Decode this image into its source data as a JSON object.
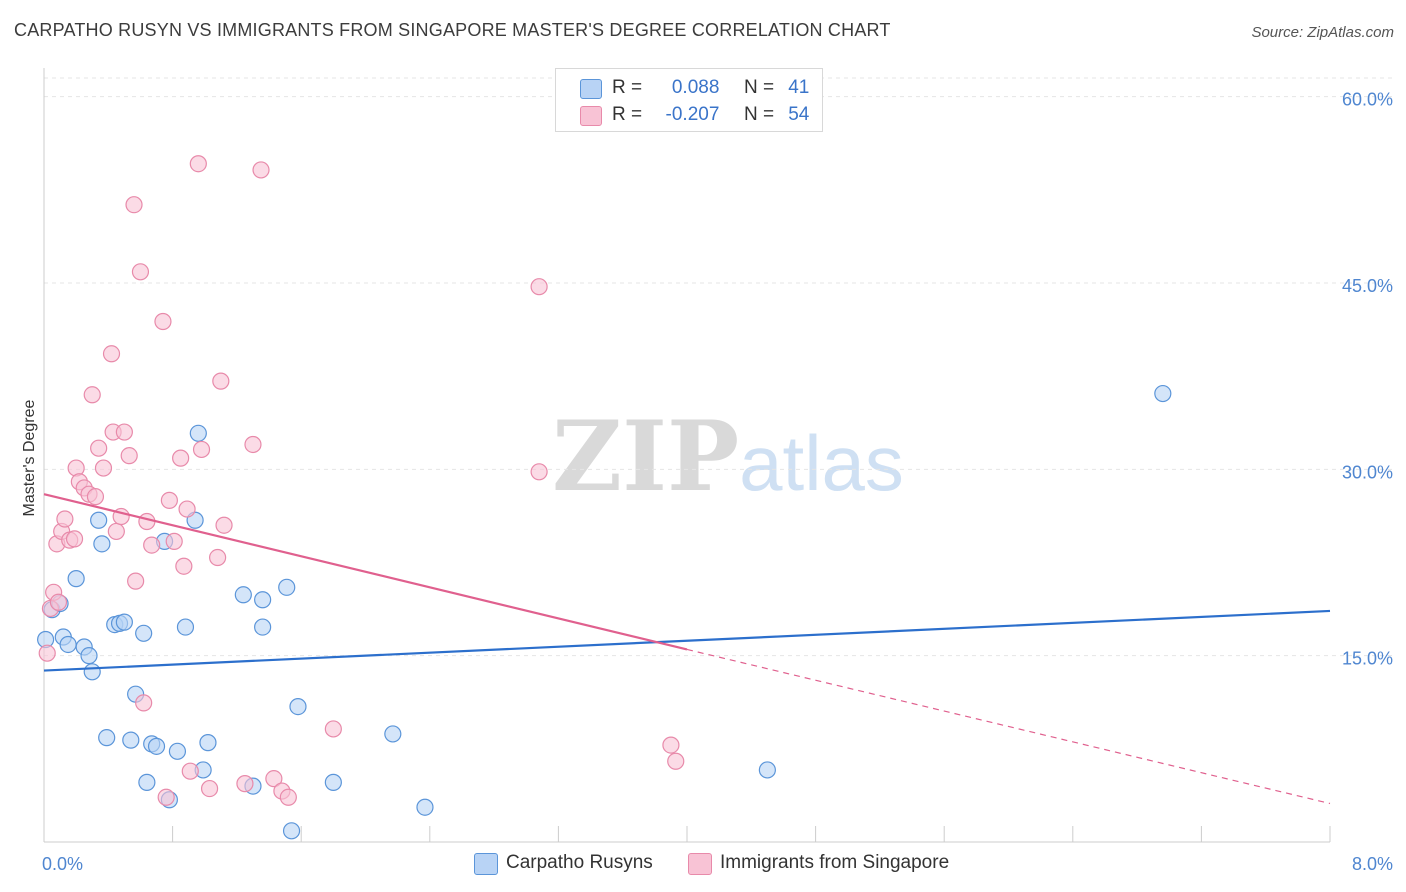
{
  "header": {
    "title": "CARPATHO RUSYN VS IMMIGRANTS FROM SINGAPORE MASTER'S DEGREE CORRELATION CHART",
    "source": "Source: ZipAtlas.com"
  },
  "legend_top": [
    {
      "r_label": "R =",
      "r_value": "0.088",
      "n_label": "N =",
      "n_value": "41"
    },
    {
      "r_label": "R =",
      "r_value": "-0.207",
      "n_label": "N =",
      "n_value": "54"
    }
  ],
  "watermark": {
    "zip": "ZIP",
    "atlas": "atlas"
  },
  "colors": {
    "blue_fill": "#b8d3f5",
    "blue_stroke": "#5b95d9",
    "blue_line": "#2c6fcc",
    "pink_fill": "#f8c3d5",
    "pink_stroke": "#e88aaa",
    "pink_line": "#e0608e",
    "axis_text": "#4f86d0",
    "grid": "#e5e5e5"
  },
  "chart_data": {
    "type": "scatter",
    "title": "CARPATHO RUSYN VS IMMIGRANTS FROM SINGAPORE MASTER'S DEGREE CORRELATION CHART",
    "xlabel": "",
    "ylabel": "Master's Degree",
    "xlim": [
      0,
      8
    ],
    "ylim": [
      0,
      61.5
    ],
    "x_tick_labels": [
      "0.0%",
      "8.0%"
    ],
    "y_ticks": [
      15,
      30,
      45,
      60
    ],
    "y_tick_labels": [
      "15.0%",
      "30.0%",
      "45.0%",
      "60.0%"
    ],
    "grid": true,
    "series": [
      {
        "name": "Carpatho Rusyns",
        "r": 0.088,
        "n": 41,
        "trend": {
          "x": [
            0,
            8
          ],
          "y": [
            13.8,
            18.6
          ]
        },
        "points": [
          {
            "x": 0.05,
            "y": 18.7
          },
          {
            "x": 0.1,
            "y": 19.2
          },
          {
            "x": 0.12,
            "y": 16.5
          },
          {
            "x": 0.15,
            "y": 15.9
          },
          {
            "x": 0.2,
            "y": 21.2
          },
          {
            "x": 0.25,
            "y": 15.7
          },
          {
            "x": 0.28,
            "y": 15.0
          },
          {
            "x": 0.3,
            "y": 13.7
          },
          {
            "x": 0.34,
            "y": 25.9
          },
          {
            "x": 0.36,
            "y": 24.0
          },
          {
            "x": 0.39,
            "y": 8.4
          },
          {
            "x": 0.44,
            "y": 17.5
          },
          {
            "x": 0.47,
            "y": 17.6
          },
          {
            "x": 0.5,
            "y": 17.7
          },
          {
            "x": 0.54,
            "y": 8.2
          },
          {
            "x": 0.57,
            "y": 11.9
          },
          {
            "x": 0.62,
            "y": 16.8
          },
          {
            "x": 0.64,
            "y": 4.8
          },
          {
            "x": 0.67,
            "y": 7.9
          },
          {
            "x": 0.7,
            "y": 7.7
          },
          {
            "x": 0.75,
            "y": 24.2
          },
          {
            "x": 0.78,
            "y": 3.4
          },
          {
            "x": 0.83,
            "y": 7.3
          },
          {
            "x": 0.88,
            "y": 17.3
          },
          {
            "x": 0.94,
            "y": 25.9
          },
          {
            "x": 0.96,
            "y": 32.9
          },
          {
            "x": 0.99,
            "y": 5.8
          },
          {
            "x": 1.02,
            "y": 8.0
          },
          {
            "x": 1.24,
            "y": 19.9
          },
          {
            "x": 1.3,
            "y": 4.5
          },
          {
            "x": 1.36,
            "y": 19.5
          },
          {
            "x": 1.36,
            "y": 17.3
          },
          {
            "x": 1.51,
            "y": 20.5
          },
          {
            "x": 1.54,
            "y": 0.9
          },
          {
            "x": 1.58,
            "y": 10.9
          },
          {
            "x": 1.8,
            "y": 4.8
          },
          {
            "x": 2.17,
            "y": 8.7
          },
          {
            "x": 2.37,
            "y": 2.8
          },
          {
            "x": 4.5,
            "y": 5.8
          },
          {
            "x": 6.96,
            "y": 36.1
          },
          {
            "x": 0.01,
            "y": 16.3
          }
        ]
      },
      {
        "name": "Immigrants from Singapore",
        "r": -0.207,
        "n": 54,
        "trend": {
          "x": [
            0,
            4.0
          ],
          "y": [
            28.0,
            15.5
          ]
        },
        "trend_dashed": {
          "x": [
            4.0,
            8.0
          ],
          "y": [
            15.5,
            3.1
          ]
        },
        "points": [
          {
            "x": 0.02,
            "y": 15.2
          },
          {
            "x": 0.04,
            "y": 18.8
          },
          {
            "x": 0.06,
            "y": 20.1
          },
          {
            "x": 0.08,
            "y": 24.0
          },
          {
            "x": 0.11,
            "y": 25.0
          },
          {
            "x": 0.13,
            "y": 26.0
          },
          {
            "x": 0.16,
            "y": 24.3
          },
          {
            "x": 0.19,
            "y": 24.4
          },
          {
            "x": 0.2,
            "y": 30.1
          },
          {
            "x": 0.22,
            "y": 29.0
          },
          {
            "x": 0.25,
            "y": 28.5
          },
          {
            "x": 0.28,
            "y": 28.0
          },
          {
            "x": 0.3,
            "y": 36.0
          },
          {
            "x": 0.32,
            "y": 27.8
          },
          {
            "x": 0.34,
            "y": 31.7
          },
          {
            "x": 0.37,
            "y": 30.1
          },
          {
            "x": 0.42,
            "y": 39.3
          },
          {
            "x": 0.43,
            "y": 33.0
          },
          {
            "x": 0.45,
            "y": 25.0
          },
          {
            "x": 0.48,
            "y": 26.2
          },
          {
            "x": 0.5,
            "y": 33.0
          },
          {
            "x": 0.53,
            "y": 31.1
          },
          {
            "x": 0.56,
            "y": 51.3
          },
          {
            "x": 0.57,
            "y": 21.0
          },
          {
            "x": 0.6,
            "y": 45.9
          },
          {
            "x": 0.62,
            "y": 11.2
          },
          {
            "x": 0.64,
            "y": 25.8
          },
          {
            "x": 0.67,
            "y": 23.9
          },
          {
            "x": 0.74,
            "y": 41.9
          },
          {
            "x": 0.76,
            "y": 3.6
          },
          {
            "x": 0.78,
            "y": 27.5
          },
          {
            "x": 0.81,
            "y": 24.2
          },
          {
            "x": 0.85,
            "y": 30.9
          },
          {
            "x": 0.87,
            "y": 22.2
          },
          {
            "x": 0.89,
            "y": 26.8
          },
          {
            "x": 0.91,
            "y": 5.7
          },
          {
            "x": 0.96,
            "y": 54.6
          },
          {
            "x": 0.98,
            "y": 31.6
          },
          {
            "x": 1.03,
            "y": 4.3
          },
          {
            "x": 1.08,
            "y": 22.9
          },
          {
            "x": 1.1,
            "y": 37.1
          },
          {
            "x": 1.12,
            "y": 25.5
          },
          {
            "x": 1.25,
            "y": 4.7
          },
          {
            "x": 1.3,
            "y": 32.0
          },
          {
            "x": 1.35,
            "y": 54.1
          },
          {
            "x": 1.43,
            "y": 5.1
          },
          {
            "x": 1.48,
            "y": 4.1
          },
          {
            "x": 1.52,
            "y": 3.6
          },
          {
            "x": 1.8,
            "y": 9.1
          },
          {
            "x": 3.08,
            "y": 29.8
          },
          {
            "x": 3.08,
            "y": 44.7
          },
          {
            "x": 3.9,
            "y": 7.8
          },
          {
            "x": 3.93,
            "y": 6.5
          },
          {
            "x": 0.09,
            "y": 19.3
          }
        ]
      }
    ]
  }
}
